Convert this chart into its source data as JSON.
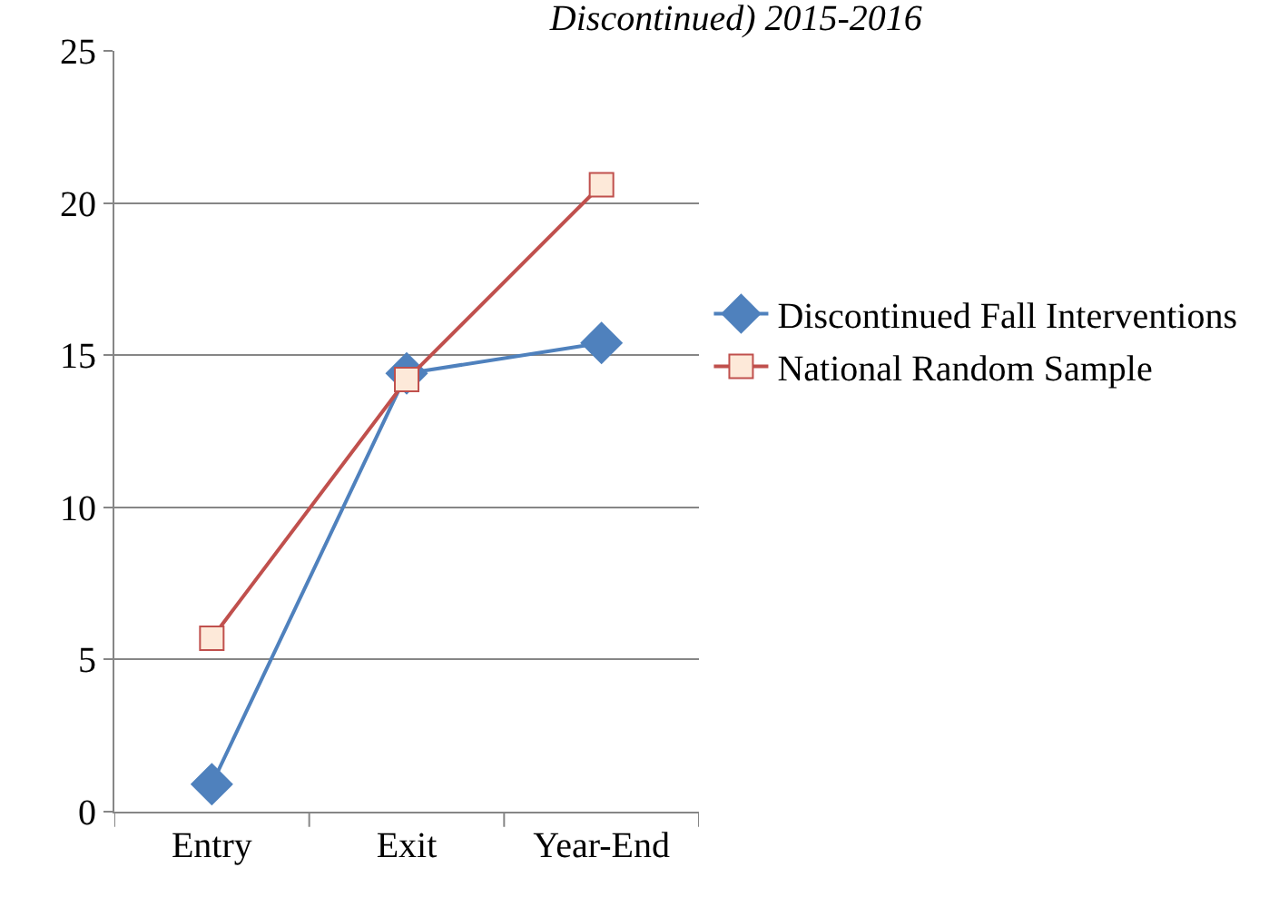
{
  "chart_data": {
    "type": "line",
    "title": "Discontinued) 2015-2016",
    "categories": [
      "Entry",
      "Exit",
      "Year-End"
    ],
    "series": [
      {
        "name": "Discontinued Fall Interventions",
        "color": "#4f81bd",
        "marker": "diamond",
        "values": [
          0.9,
          14.4,
          15.4
        ]
      },
      {
        "name": "National Random Sample",
        "color": "#c0504d",
        "marker": "square",
        "values": [
          5.7,
          14.2,
          20.6
        ]
      }
    ],
    "ylim": [
      0,
      25
    ],
    "yticks": [
      0,
      5,
      10,
      15,
      20,
      25
    ],
    "grid": "y",
    "legend": "right",
    "line_style": "solid"
  }
}
